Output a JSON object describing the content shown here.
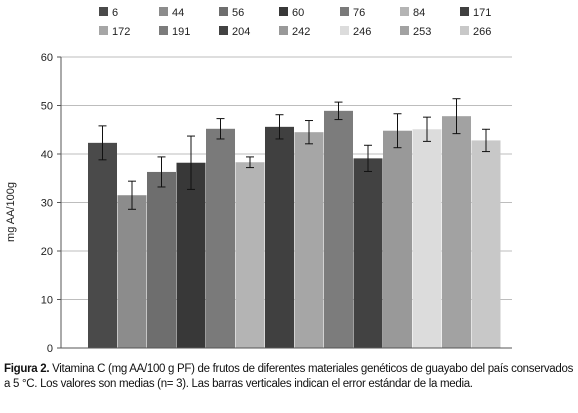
{
  "chart_data": {
    "type": "bar",
    "ylabel": "mg AA/100g",
    "ylim": [
      0,
      60
    ],
    "yticks": [
      0,
      10,
      20,
      30,
      40,
      50,
      60
    ],
    "grid": true,
    "legend_position": "top",
    "error_bars": true,
    "series": [
      {
        "name": "6",
        "value": 42.3,
        "error": 3.5,
        "color": "#4a4a4a"
      },
      {
        "name": "44",
        "value": 31.5,
        "error": 2.9,
        "color": "#8c8c8c"
      },
      {
        "name": "56",
        "value": 36.3,
        "error": 3.1,
        "color": "#6e6e6e"
      },
      {
        "name": "60",
        "value": 38.2,
        "error": 5.5,
        "color": "#383838"
      },
      {
        "name": "76",
        "value": 45.2,
        "error": 2.1,
        "color": "#7a7a7a"
      },
      {
        "name": "84",
        "value": 38.3,
        "error": 1.1,
        "color": "#b4b4b4"
      },
      {
        "name": "171",
        "value": 45.6,
        "error": 2.5,
        "color": "#404040"
      },
      {
        "name": "172",
        "value": 44.5,
        "error": 2.4,
        "color": "#a6a6a6"
      },
      {
        "name": "191",
        "value": 48.9,
        "error": 1.8,
        "color": "#7c7c7c"
      },
      {
        "name": "204",
        "value": 39.1,
        "error": 2.7,
        "color": "#424242"
      },
      {
        "name": "242",
        "value": 44.8,
        "error": 3.5,
        "color": "#999999"
      },
      {
        "name": "246",
        "value": 45.1,
        "error": 2.5,
        "color": "#dcdcdc"
      },
      {
        "name": "253",
        "value": 47.8,
        "error": 3.6,
        "color": "#a2a2a2"
      },
      {
        "name": "266",
        "value": 42.8,
        "error": 2.3,
        "color": "#c8c8c8"
      }
    ]
  },
  "caption": {
    "label": "Figura 2.",
    "text": " Vitamina C (mg AA/100 g PF) de frutos de diferentes materiales genéticos de guayabo del país conservados a 5 °C. Los valores son medias (n= 3). Las barras verticales indican el error estándar de la media."
  }
}
